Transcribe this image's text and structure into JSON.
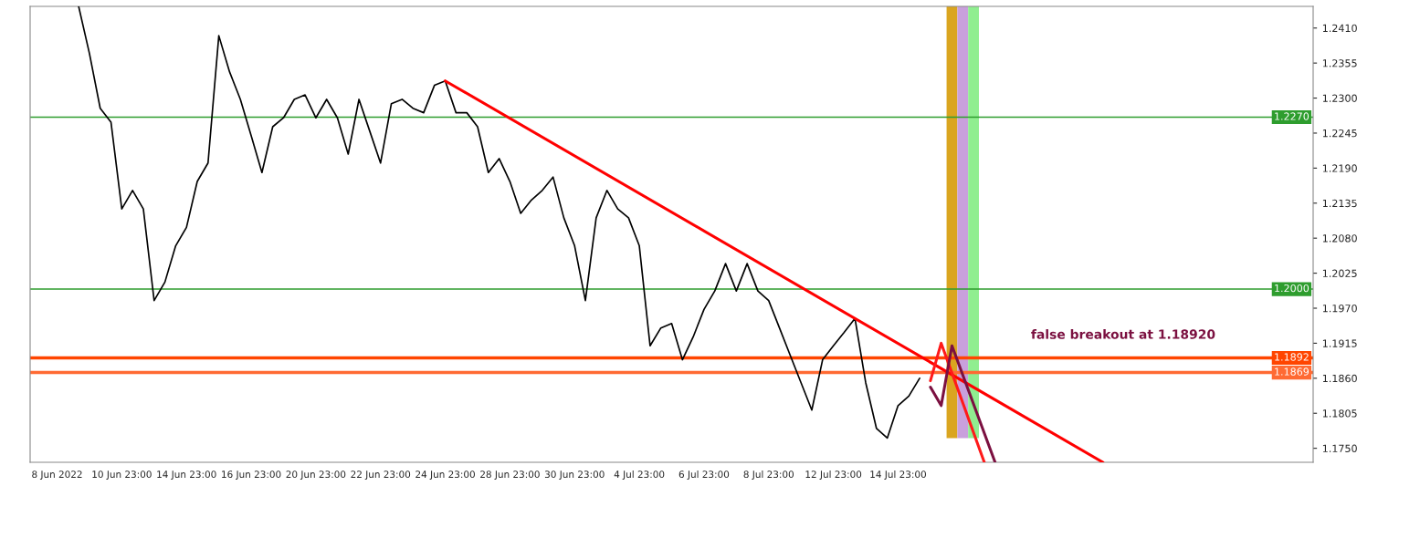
{
  "chart_data": {
    "type": "line",
    "categories": [
      null,
      null,
      "8 Jun 2022",
      null,
      null,
      null,
      null,
      null,
      "10 Jun 23:00",
      null,
      null,
      null,
      null,
      null,
      "14 Jun 23:00",
      null,
      null,
      null,
      null,
      null,
      "16 Jun 23:00",
      null,
      null,
      null,
      null,
      null,
      "20 Jun 23:00",
      null,
      null,
      null,
      null,
      null,
      "22 Jun 23:00",
      null,
      null,
      null,
      null,
      null,
      "24 Jun 23:00",
      null,
      null,
      null,
      null,
      null,
      "28 Jun 23:00",
      null,
      null,
      null,
      null,
      null,
      "30 Jun 23:00",
      null,
      null,
      null,
      null,
      null,
      "4 Jul 23:00",
      null,
      null,
      null,
      null,
      null,
      "6 Jul 23:00",
      null,
      null,
      null,
      null,
      null,
      "8 Jul 23:00",
      null,
      null,
      null,
      null,
      null,
      "12 Jul 23:00",
      null,
      null,
      null,
      null,
      null,
      "14 Jul 23:00",
      null,
      null,
      null,
      null,
      null,
      null,
      null,
      null,
      null,
      null,
      null,
      null,
      null,
      null,
      null,
      null,
      null,
      null,
      null,
      null,
      null,
      null,
      null,
      null,
      null,
      null,
      null,
      null,
      null,
      null,
      null,
      null,
      null,
      null,
      null,
      null,
      null,
      null
    ],
    "ylim": [
      1.1728,
      1.2444
    ],
    "yticks": [
      {
        "value": 1.175,
        "label": "1.1750"
      },
      {
        "value": 1.1805,
        "label": "1.1805"
      },
      {
        "value": 1.186,
        "label": "1.1860"
      },
      {
        "value": 1.1915,
        "label": "1.1915"
      },
      {
        "value": 1.197,
        "label": "1.1970"
      },
      {
        "value": 1.2025,
        "label": "1.2025"
      },
      {
        "value": 1.208,
        "label": "1.2080"
      },
      {
        "value": 1.2135,
        "label": "1.2135"
      },
      {
        "value": 1.219,
        "label": "1.2190"
      },
      {
        "value": 1.2245,
        "label": "1.2245"
      },
      {
        "value": 1.23,
        "label": "1.2300"
      },
      {
        "value": 1.2355,
        "label": "1.2355"
      },
      {
        "value": 1.241,
        "label": "1.2410"
      }
    ],
    "grid": false,
    "series": [
      {
        "type": "bar",
        "base": [
          null,
          null,
          null,
          null,
          null,
          null,
          null,
          null,
          null,
          null,
          null,
          null,
          null,
          null,
          null,
          null,
          null,
          null,
          null,
          null,
          null,
          null,
          null,
          null,
          null,
          null,
          null,
          null,
          null,
          null,
          null,
          null,
          null,
          null,
          null,
          null,
          null,
          null,
          null,
          null,
          null,
          null,
          null,
          null,
          null,
          null,
          null,
          null,
          null,
          null,
          null,
          null,
          null,
          null,
          null,
          null,
          null,
          null,
          null,
          null,
          null,
          null,
          null,
          null,
          null,
          null,
          null,
          null,
          null,
          null,
          null,
          null,
          null,
          null,
          null,
          null,
          null,
          null,
          null,
          null,
          null,
          null,
          null,
          null,
          null,
          1.1766,
          1.1766,
          1.1766,
          null,
          null,
          null,
          null,
          null,
          null,
          null,
          null,
          null,
          null,
          null,
          null,
          null,
          null,
          null,
          null,
          null,
          null,
          null,
          null,
          null,
          null,
          null,
          null,
          null,
          null,
          null,
          null,
          null,
          null,
          null
        ],
        "values": [
          null,
          null,
          null,
          null,
          null,
          null,
          null,
          null,
          null,
          null,
          null,
          null,
          null,
          null,
          null,
          null,
          null,
          null,
          null,
          null,
          null,
          null,
          null,
          null,
          null,
          null,
          null,
          null,
          null,
          null,
          null,
          null,
          null,
          null,
          null,
          null,
          null,
          null,
          null,
          null,
          null,
          null,
          null,
          null,
          null,
          null,
          null,
          null,
          null,
          null,
          null,
          null,
          null,
          null,
          null,
          null,
          null,
          null,
          null,
          null,
          null,
          null,
          null,
          null,
          null,
          null,
          null,
          null,
          null,
          null,
          null,
          null,
          null,
          null,
          null,
          null,
          null,
          null,
          null,
          null,
          null,
          null,
          null,
          null,
          null,
          0.0678,
          0.0678,
          0.0678,
          null,
          null,
          null,
          null,
          null,
          null,
          null,
          null,
          null,
          null,
          null,
          null,
          null,
          null,
          null,
          null,
          null,
          null,
          null,
          null,
          null,
          null,
          null,
          null,
          null,
          null,
          null,
          null,
          null,
          null,
          null
        ],
        "colors": [
          null,
          null,
          null,
          null,
          null,
          null,
          null,
          null,
          null,
          null,
          null,
          null,
          null,
          null,
          null,
          null,
          null,
          null,
          null,
          null,
          null,
          null,
          null,
          null,
          null,
          null,
          null,
          null,
          null,
          null,
          null,
          null,
          null,
          null,
          null,
          null,
          null,
          null,
          null,
          null,
          null,
          null,
          null,
          null,
          null,
          null,
          null,
          null,
          null,
          null,
          null,
          null,
          null,
          null,
          null,
          null,
          null,
          null,
          null,
          null,
          null,
          null,
          null,
          null,
          null,
          null,
          null,
          null,
          null,
          null,
          null,
          null,
          null,
          null,
          null,
          null,
          null,
          null,
          null,
          null,
          null,
          null,
          null,
          null,
          null,
          "#daa520",
          "#c9a0dc",
          "#90ee90",
          null,
          null,
          null,
          null,
          null,
          null,
          null,
          null,
          null,
          null,
          null,
          null,
          null,
          null,
          null,
          null,
          null,
          null,
          null,
          null,
          null,
          null,
          null,
          null,
          null,
          null,
          null,
          null,
          null,
          null,
          null
        ]
      },
      {
        "color": "#000000",
        "values": [
          null,
          null,
          null,
          null,
          1.2444,
          1.237,
          1.2284,
          1.2262,
          1.2126,
          1.2155,
          1.2126,
          1.1982,
          1.2011,
          1.2068,
          1.2097,
          1.2169,
          1.2198,
          1.2398,
          1.2341,
          1.2298,
          1.2241,
          1.2183,
          1.2255,
          1.2269,
          1.2298,
          1.2305,
          1.2269,
          1.2298,
          1.2269,
          1.2212,
          1.2298,
          1.2248,
          1.2198,
          1.2291,
          1.2298,
          1.2284,
          1.2277,
          1.232,
          1.2327,
          1.2277,
          1.2277,
          1.2255,
          1.2183,
          1.2205,
          1.2169,
          1.2119,
          1.214,
          1.2155,
          1.2176,
          1.2112,
          1.2068,
          1.1982,
          1.2112,
          1.2155,
          1.2126,
          1.2112,
          1.2068,
          1.1911,
          1.1939,
          1.1946,
          1.1889,
          1.1925,
          1.1968,
          1.1997,
          1.204,
          1.1997,
          1.204,
          1.1997,
          1.1982,
          1.1939,
          1.1896,
          1.1853,
          1.181,
          1.1889,
          1.1911,
          1.1932,
          1.1954,
          1.1853,
          1.1781,
          1.1766,
          1.1817,
          1.1832,
          1.186,
          null,
          null,
          null,
          null,
          null,
          null,
          null,
          null,
          null,
          null,
          null,
          null,
          null,
          null,
          null,
          null,
          null,
          null,
          null,
          null,
          null,
          null,
          null,
          null,
          null,
          null,
          null,
          null,
          null,
          null,
          null,
          null,
          null,
          null,
          null,
          null
        ]
      },
      {
        "color": "#ff0000",
        "values": [
          null,
          null,
          null,
          null,
          null,
          null,
          null,
          null,
          null,
          null,
          null,
          null,
          null,
          null,
          null,
          null,
          null,
          null,
          null,
          null,
          null,
          null,
          null,
          null,
          null,
          null,
          null,
          null,
          null,
          null,
          null,
          null,
          null,
          null,
          null,
          null,
          null,
          null,
          1.2327,
          null,
          null,
          null,
          null,
          null,
          null,
          null,
          null,
          null,
          null,
          null,
          null,
          null,
          null,
          null,
          null,
          null,
          null,
          null,
          null,
          null,
          null,
          null,
          null,
          null,
          null,
          null,
          null,
          null,
          null,
          null,
          null,
          null,
          null,
          null,
          null,
          null,
          null,
          null,
          null,
          null,
          null,
          null,
          null,
          null,
          null,
          null,
          null,
          null,
          null,
          null,
          null,
          null,
          null,
          null,
          null,
          null,
          null,
          null,
          null,
          1.1728,
          null,
          null,
          null,
          null,
          null,
          null,
          null,
          null,
          null,
          null,
          null,
          null,
          null,
          null,
          null,
          null,
          null,
          null,
          null
        ]
      },
      {
        "color": "#ff1a1a",
        "values": [
          null,
          null,
          null,
          null,
          null,
          null,
          null,
          null,
          null,
          null,
          null,
          null,
          null,
          null,
          null,
          null,
          null,
          null,
          null,
          null,
          null,
          null,
          null,
          null,
          null,
          null,
          null,
          null,
          null,
          null,
          null,
          null,
          null,
          null,
          null,
          null,
          null,
          null,
          null,
          null,
          null,
          null,
          null,
          null,
          null,
          null,
          null,
          null,
          null,
          null,
          null,
          null,
          null,
          null,
          null,
          null,
          null,
          null,
          null,
          null,
          null,
          null,
          null,
          null,
          null,
          null,
          null,
          null,
          null,
          null,
          null,
          null,
          null,
          null,
          null,
          null,
          null,
          null,
          null,
          null,
          null,
          null,
          null,
          1.1856,
          1.1915,
          null,
          null,
          null,
          1.1728,
          null,
          null,
          null,
          null,
          null,
          null,
          null,
          null,
          null,
          null,
          null,
          null,
          null,
          null,
          null,
          null,
          null,
          null,
          null,
          null,
          null,
          null,
          null,
          null,
          null,
          null,
          null,
          null,
          null,
          null
        ]
      },
      {
        "color": "#7b1040",
        "values": [
          null,
          null,
          null,
          null,
          null,
          null,
          null,
          null,
          null,
          null,
          null,
          null,
          null,
          null,
          null,
          null,
          null,
          null,
          null,
          null,
          null,
          null,
          null,
          null,
          null,
          null,
          null,
          null,
          null,
          null,
          null,
          null,
          null,
          null,
          null,
          null,
          null,
          null,
          null,
          null,
          null,
          null,
          null,
          null,
          null,
          null,
          null,
          null,
          null,
          null,
          null,
          null,
          null,
          null,
          null,
          null,
          null,
          null,
          null,
          null,
          null,
          null,
          null,
          null,
          null,
          null,
          null,
          null,
          null,
          null,
          null,
          null,
          null,
          null,
          null,
          null,
          null,
          null,
          null,
          null,
          null,
          null,
          null,
          1.1846,
          1.1817,
          1.1911,
          null,
          null,
          null,
          1.1728,
          null,
          null,
          null,
          null,
          null,
          null,
          null,
          null,
          null,
          null,
          null,
          null,
          null,
          null,
          null,
          null,
          null,
          null,
          null,
          null,
          null,
          null,
          null,
          null,
          null,
          null,
          null,
          null,
          null
        ]
      }
    ],
    "ref_lines": [
      {
        "axis": "y",
        "value": 1.227,
        "label": "1.2270",
        "color": "#2e9d2e"
      },
      {
        "axis": "y",
        "value": 1.2,
        "label": "1.2000",
        "color": "#2e9d2e"
      },
      {
        "axis": "y",
        "value": 1.1892,
        "label": "1.1892",
        "color": "#ff4500"
      },
      {
        "axis": "y",
        "value": 1.1869,
        "label": "1.1869",
        "color": "#ff6a33"
      }
    ],
    "annotations": [
      "false breakout at 1.18920"
    ]
  }
}
